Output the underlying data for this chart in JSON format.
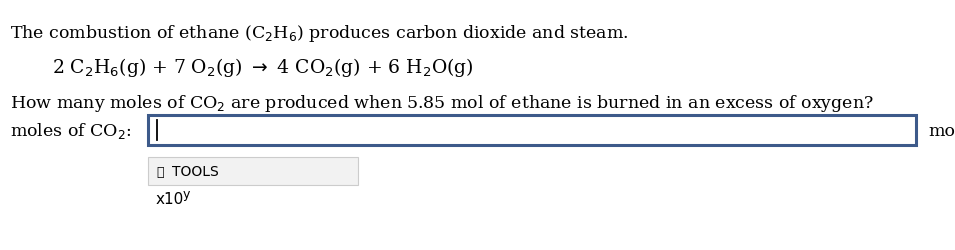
{
  "bg_color": "#ffffff",
  "line1": "The combustion of ethane (C",
  "line1_sub1": "2",
  "line1_mid": "H",
  "line1_sub2": "6",
  "line1_end": ") produces carbon dioxide and steam.",
  "label_text": "moles of CO",
  "label_sub": "2",
  "label_colon": ":",
  "unit_text": "mol",
  "tools_icon": "✔",
  "tools_label": "TOOLS",
  "x10_text": "x10",
  "x10_sup": "y",
  "input_box_color": "#ffffff",
  "input_box_border": "#3d5a8a",
  "tools_box_color": "#f2f2f2",
  "tools_box_border": "#cccccc",
  "font_size_main": 12.5,
  "font_size_eq": 13.5,
  "font_size_label": 12.5,
  "font_size_tools": 10,
  "font_size_x10": 11,
  "font_size_x10_sup": 9
}
